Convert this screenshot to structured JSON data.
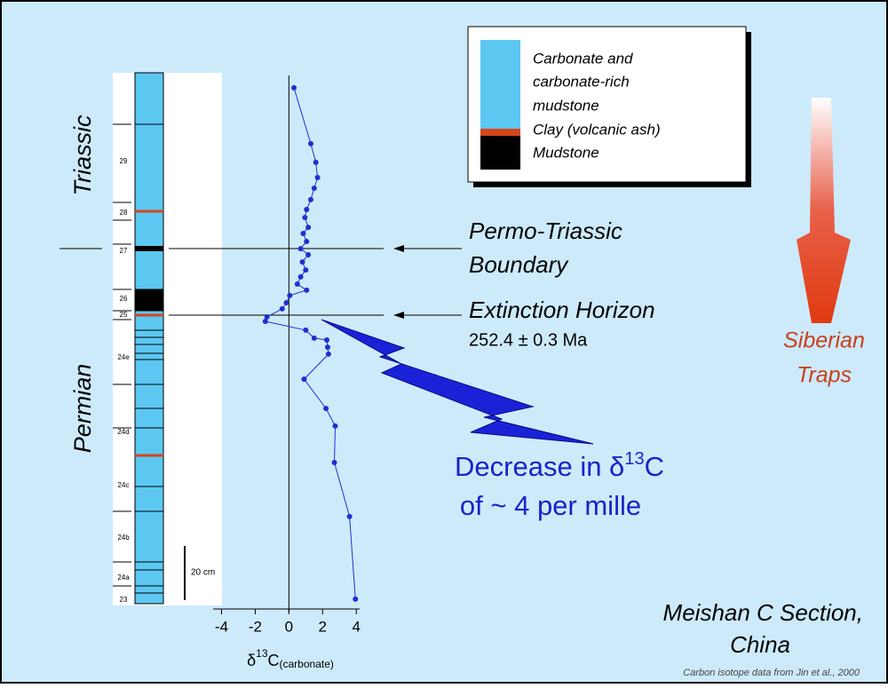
{
  "chart_data": {
    "type": "line",
    "color": "#1f2fd0",
    "x": [
      0.3,
      1.3,
      1.6,
      1.7,
      1.5,
      1.3,
      1.05,
      0.95,
      1.15,
      0.85,
      1.05,
      0.7,
      1.15,
      0.8,
      1.0,
      0.7,
      0.5,
      1.05,
      0.05,
      -0.15,
      -0.4,
      -1.3,
      -1.4,
      1.0,
      1.5,
      2.25,
      2.3,
      2.35,
      0.9,
      2.2,
      2.75,
      2.7,
      3.6,
      3.95
    ],
    "y": [
      193.7,
      172.7,
      165.7,
      160,
      156,
      151.7,
      148,
      145,
      141.3,
      139,
      136,
      133.3,
      131,
      128.3,
      125.3,
      122.7,
      120,
      117.7,
      115.7,
      113,
      110.7,
      107.7,
      106,
      102.7,
      99.7,
      99,
      96.3,
      93.7,
      84.3,
      73.3,
      66.7,
      53,
      32.7,
      1.7
    ],
    "xlim": [
      -4.5,
      4.2
    ],
    "xticks": [
      -4,
      -2,
      0,
      2,
      4
    ],
    "ylim": [
      0,
      200
    ],
    "xlabel_parts": [
      "δ",
      "13",
      "C",
      "(carbonate)"
    ]
  },
  "periods": [
    "Triassic",
    "Permian"
  ],
  "bed_labels": [
    "29",
    "28",
    "27",
    "26",
    "25",
    "24e",
    "24d",
    "24c",
    "24b",
    "24a",
    "23"
  ],
  "scale_bar": "20 cm",
  "legend": [
    "Carbonate and",
    "carbonate-rich",
    "mudstone",
    "Clay (volcanic ash)",
    "Mudstone"
  ],
  "boundary": [
    "Permo-Triassic",
    "Boundary"
  ],
  "extinction": {
    "title": "Extinction Horizon",
    "age": "252.4 ± 0.3 Ma"
  },
  "decrease": {
    "parts": [
      "Decrease in δ",
      "13",
      "C"
    ],
    "line2": "of ~ 4 per mille"
  },
  "traps": [
    "Siberian",
    "Traps"
  ],
  "section": [
    "Meishan C Section,",
    "China"
  ],
  "credit": "Carbon isotope data from Jin et al., 2000"
}
